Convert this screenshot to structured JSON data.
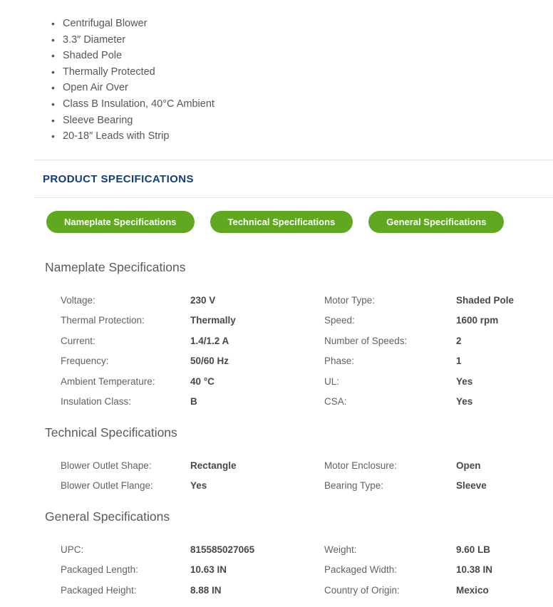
{
  "features": [
    "Centrifugal Blower",
    "3.3″ Diameter",
    "Shaded Pole",
    "Thermally Protected",
    "Open Air Over",
    "Class B Insulation, 40°C Ambient",
    "Sleeve Bearing",
    "20-18″ Leads with Strip"
  ],
  "header": {
    "title": "PRODUCT SPECIFICATIONS"
  },
  "buttons": [
    {
      "label": "Nameplate Specifications"
    },
    {
      "label": "Technical Specifications"
    },
    {
      "label": "General Specifications"
    }
  ],
  "colors": {
    "accent_green": "#60a81f",
    "heading_navy": "#123c7c"
  },
  "spec_sections": [
    {
      "title": "Nameplate Specifications",
      "rows": [
        {
          "l_label": "Voltage:",
          "l_value": "230 V",
          "r_label": "Motor Type:",
          "r_value": "Shaded Pole"
        },
        {
          "l_label": "Thermal Protection:",
          "l_value": "Thermally",
          "r_label": "Speed:",
          "r_value": "1600 rpm"
        },
        {
          "l_label": "Current:",
          "l_value": "1.4/1.2 A",
          "r_label": "Number of Speeds:",
          "r_value": "2"
        },
        {
          "l_label": "Frequency:",
          "l_value": "50/60 Hz",
          "r_label": "Phase:",
          "r_value": "1"
        },
        {
          "l_label": "Ambient Temperature:",
          "l_value": "40 °C",
          "r_label": "UL:",
          "r_value": "Yes"
        },
        {
          "l_label": "Insulation Class:",
          "l_value": "B",
          "r_label": "CSA:",
          "r_value": "Yes"
        }
      ]
    },
    {
      "title": "Technical Specifications",
      "rows": [
        {
          "l_label": "Blower Outlet Shape:",
          "l_value": "Rectangle",
          "r_label": "Motor Enclosure:",
          "r_value": "Open"
        },
        {
          "l_label": "Blower Outlet Flange:",
          "l_value": "Yes",
          "r_label": "Bearing Type:",
          "r_value": "Sleeve"
        }
      ]
    },
    {
      "title": "General Specifications",
      "rows": [
        {
          "l_label": "UPC:",
          "l_value": "815585027065",
          "r_label": "Weight:",
          "r_value": "9.60 LB"
        },
        {
          "l_label": "Packaged Length:",
          "l_value": "10.63 IN",
          "r_label": "Packaged Width:",
          "r_value": "10.38 IN"
        },
        {
          "l_label": "Packaged Height:",
          "l_value": "8.88 IN",
          "r_label": "Country of Origin:",
          "r_value": "Mexico"
        }
      ]
    }
  ]
}
